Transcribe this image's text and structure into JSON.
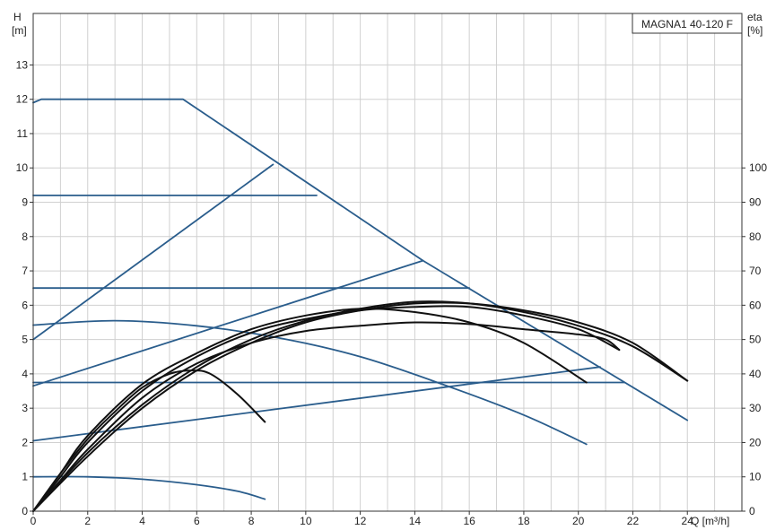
{
  "chart_data": {
    "type": "line",
    "title": "MAGNA1 40-120 F",
    "x_axis": {
      "label": "Q [m³/h]",
      "range": [
        0,
        26
      ],
      "ticks": [
        0,
        2,
        4,
        6,
        8,
        10,
        12,
        14,
        16,
        18,
        20,
        22,
        24
      ]
    },
    "y_axis_left": {
      "label_top": "H",
      "label_unit": "[m]",
      "range": [
        0,
        14.5
      ],
      "ticks": [
        0,
        1,
        2,
        3,
        4,
        5,
        6,
        7,
        8,
        9,
        10,
        11,
        12,
        13
      ]
    },
    "y_axis_right": {
      "label_top": "eta",
      "label_unit": "[%]",
      "range": [
        0,
        145
      ],
      "ticks": [
        0,
        10,
        20,
        30,
        40,
        50,
        60,
        70,
        80,
        90,
        100
      ]
    },
    "grid": true,
    "colors": {
      "head_curves": "#2a5d8c",
      "efficiency_curves": "#111111"
    },
    "series": [
      {
        "axis": "left",
        "color": "#2a5d8c",
        "points": [
          [
            0,
            11.9
          ],
          [
            0.3,
            12
          ],
          [
            5.5,
            12
          ],
          [
            14.3,
            7.3
          ],
          [
            24,
            2.65
          ]
        ]
      },
      {
        "axis": "left",
        "color": "#2a5d8c",
        "points": [
          [
            0,
            9.2
          ],
          [
            10.4,
            9.2
          ]
        ]
      },
      {
        "axis": "left",
        "color": "#2a5d8c",
        "points": [
          [
            0,
            6.5
          ],
          [
            16,
            6.5
          ]
        ]
      },
      {
        "axis": "left",
        "color": "#2a5d8c",
        "points": [
          [
            0,
            3.75
          ],
          [
            21.7,
            3.75
          ]
        ]
      },
      {
        "axis": "left",
        "color": "#2a5d8c",
        "points": [
          [
            0,
            5
          ],
          [
            8.8,
            10.1
          ]
        ]
      },
      {
        "axis": "left",
        "color": "#2a5d8c",
        "points": [
          [
            0,
            3.65
          ],
          [
            14.3,
            7.3
          ]
        ]
      },
      {
        "axis": "left",
        "color": "#2a5d8c",
        "points": [
          [
            0,
            2.05
          ],
          [
            20.8,
            4.2
          ]
        ]
      },
      {
        "axis": "left",
        "color": "#2a5d8c",
        "points": [
          [
            0,
            5.42
          ],
          [
            3,
            5.55
          ],
          [
            6,
            5.4
          ],
          [
            9,
            5.05
          ],
          [
            12,
            4.5
          ],
          [
            15,
            3.7
          ],
          [
            18,
            2.8
          ],
          [
            20.3,
            1.95
          ]
        ]
      },
      {
        "axis": "left",
        "color": "#2a5d8c",
        "points": [
          [
            0,
            1
          ],
          [
            2,
            1
          ],
          [
            4,
            0.93
          ],
          [
            6,
            0.77
          ],
          [
            7.5,
            0.58
          ],
          [
            8.5,
            0.35
          ]
        ]
      },
      {
        "axis": "right",
        "color": "#111111",
        "points": [
          [
            0,
            0
          ],
          [
            1,
            11
          ],
          [
            2,
            21
          ],
          [
            3,
            29
          ],
          [
            4,
            36
          ],
          [
            5,
            40
          ],
          [
            5.8,
            41
          ],
          [
            6.5,
            40
          ],
          [
            7.5,
            34
          ],
          [
            8.5,
            26
          ]
        ]
      },
      {
        "axis": "right",
        "color": "#111111",
        "points": [
          [
            0,
            0
          ],
          [
            1,
            11
          ],
          [
            2,
            22
          ],
          [
            4,
            37
          ],
          [
            6,
            46
          ],
          [
            8,
            53
          ],
          [
            10,
            57
          ],
          [
            12,
            59
          ],
          [
            14,
            58
          ],
          [
            16,
            55
          ],
          [
            18,
            49
          ],
          [
            20.3,
            37.5
          ]
        ]
      },
      {
        "axis": "right",
        "color": "#111111",
        "points": [
          [
            0,
            0
          ],
          [
            1,
            9
          ],
          [
            2,
            18
          ],
          [
            4,
            33
          ],
          [
            6,
            43
          ],
          [
            8,
            49
          ],
          [
            10,
            52.5
          ],
          [
            12,
            54
          ],
          [
            14,
            55
          ],
          [
            16,
            54.5
          ],
          [
            18,
            53
          ],
          [
            20,
            51.5
          ],
          [
            21,
            50
          ],
          [
            21.5,
            47
          ]
        ]
      },
      {
        "axis": "right",
        "color": "#111111",
        "points": [
          [
            0,
            0
          ],
          [
            1,
            10
          ],
          [
            2,
            20
          ],
          [
            4,
            35
          ],
          [
            6,
            45
          ],
          [
            8,
            52
          ],
          [
            10,
            56
          ],
          [
            12,
            58.5
          ],
          [
            14,
            59.5
          ],
          [
            16,
            59.5
          ],
          [
            18,
            57
          ],
          [
            20,
            53
          ],
          [
            21.5,
            47
          ]
        ]
      },
      {
        "axis": "right",
        "color": "#111111",
        "points": [
          [
            0,
            0
          ],
          [
            2,
            17
          ],
          [
            4,
            31
          ],
          [
            6,
            42
          ],
          [
            8,
            50
          ],
          [
            10,
            55.5
          ],
          [
            12,
            59
          ],
          [
            14,
            61
          ],
          [
            16,
            60.5
          ],
          [
            18,
            58
          ],
          [
            20,
            54
          ],
          [
            22,
            48
          ],
          [
            24,
            38
          ]
        ]
      },
      {
        "axis": "right",
        "color": "#111111",
        "points": [
          [
            0,
            0
          ],
          [
            2,
            16
          ],
          [
            4,
            30
          ],
          [
            6,
            41
          ],
          [
            8,
            49
          ],
          [
            10,
            55
          ],
          [
            12,
            58.5
          ],
          [
            14,
            60.5
          ],
          [
            16,
            60.5
          ],
          [
            18,
            58.5
          ],
          [
            20,
            55
          ],
          [
            22,
            49
          ],
          [
            24,
            38
          ]
        ]
      }
    ]
  }
}
